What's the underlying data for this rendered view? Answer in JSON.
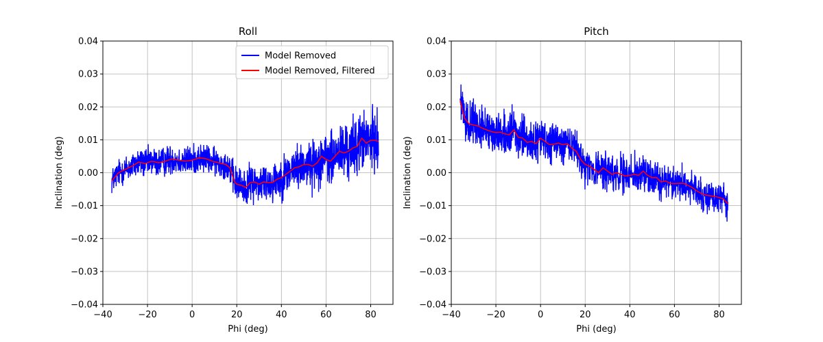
{
  "chart_data": [
    {
      "type": "line",
      "title": "Roll",
      "xlabel": "Phi (deg)",
      "ylabel": "Inclination (deg)",
      "xlim": [
        -40,
        90
      ],
      "ylim": [
        -0.04,
        0.04
      ],
      "xticks": [
        -40,
        -20,
        0,
        20,
        40,
        60,
        80
      ],
      "xtick_labels": [
        "−40",
        "−20",
        "0",
        "20",
        "40",
        "60",
        "80"
      ],
      "yticks": [
        -0.04,
        -0.03,
        -0.02,
        -0.01,
        0.0,
        0.01,
        0.02,
        0.03,
        0.04
      ],
      "ytick_labels": [
        "−0.04",
        "−0.03",
        "−0.02",
        "−0.01",
        "0.00",
        "0.01",
        "0.02",
        "0.03",
        "0.04"
      ],
      "grid": true,
      "legend": {
        "placement": "upper right",
        "entries": [
          "Model Removed",
          "Model Removed, Filtered"
        ]
      },
      "series": [
        {
          "name": "Model Removed",
          "color": "#0000ff",
          "style": "noisy",
          "x_range": [
            -36,
            83.5
          ],
          "noise_amplitude_trend": {
            "x": [
              -36,
              -20,
              0,
              15,
              18,
              30,
              50,
              60,
              70,
              83.5
            ],
            "amp": [
              0.006,
              0.0065,
              0.0065,
              0.006,
              0.0075,
              0.0085,
              0.01,
              0.012,
              0.013,
              0.013
            ]
          }
        },
        {
          "name": "Model Removed, Filtered",
          "color": "#ff0000",
          "x": [
            -36,
            -33,
            -30,
            -27,
            -24,
            -21,
            -18,
            -15,
            -12,
            -9,
            -6,
            -3,
            0,
            3,
            6,
            9,
            12,
            15,
            17,
            18,
            19,
            20,
            22,
            24,
            26,
            28,
            30,
            32,
            34,
            36,
            38,
            40,
            42,
            44,
            46,
            48,
            50,
            52,
            54,
            56,
            58,
            60,
            62,
            64,
            66,
            68,
            70,
            72,
            74,
            76,
            78,
            80,
            82,
            83.5
          ],
          "y": [
            -0.0025,
            0.0,
            0.001,
            0.002,
            0.0032,
            0.0028,
            0.0035,
            0.003,
            0.0035,
            0.0042,
            0.0038,
            0.0035,
            0.0038,
            0.0045,
            0.0043,
            0.0035,
            0.003,
            0.0025,
            0.0015,
            -0.0008,
            -0.0028,
            -0.0035,
            -0.0038,
            -0.0045,
            -0.003,
            -0.0028,
            -0.0035,
            -0.0028,
            -0.003,
            -0.003,
            -0.002,
            -0.0015,
            -0.0005,
            0.0005,
            0.0015,
            0.0018,
            0.0025,
            0.0025,
            0.002,
            0.003,
            0.005,
            0.004,
            0.0035,
            0.005,
            0.0065,
            0.006,
            0.0065,
            0.0075,
            0.008,
            0.0105,
            0.009,
            0.0098,
            0.0098,
            0.0095
          ]
        }
      ]
    },
    {
      "type": "line",
      "title": "Pitch",
      "xlabel": "Phi (deg)",
      "ylabel": "Inclination (deg)",
      "xlim": [
        -40,
        90
      ],
      "ylim": [
        -0.04,
        0.04
      ],
      "xticks": [
        -40,
        -20,
        0,
        20,
        40,
        60,
        80
      ],
      "xtick_labels": [
        "−40",
        "−20",
        "0",
        "20",
        "40",
        "60",
        "80"
      ],
      "yticks": [
        -0.04,
        -0.03,
        -0.02,
        -0.01,
        0.0,
        0.01,
        0.02,
        0.03,
        0.04
      ],
      "ytick_labels": [
        "−0.04",
        "−0.03",
        "−0.02",
        "−0.01",
        "0.00",
        "0.01",
        "0.02",
        "0.03",
        "0.04"
      ],
      "grid": true,
      "series": [
        {
          "color": "#0000ff",
          "style": "noisy",
          "x_range": [
            -36,
            84
          ],
          "noise_amplitude_trend": {
            "x": [
              -36,
              -30,
              0,
              20,
              40,
              60,
              84
            ],
            "amp": [
              0.008,
              0.009,
              0.009,
              0.0085,
              0.008,
              0.0075,
              0.0065
            ]
          }
        },
        {
          "color": "#ff0000",
          "x": [
            -36,
            -35,
            -34,
            -32,
            -30,
            -28,
            -26,
            -24,
            -22,
            -20,
            -18,
            -16,
            -14,
            -12,
            -10,
            -8,
            -6,
            -4,
            -2,
            0,
            2,
            4,
            6,
            8,
            10,
            12,
            14,
            16,
            18,
            20,
            22,
            24,
            26,
            28,
            30,
            32,
            34,
            36,
            38,
            40,
            42,
            44,
            46,
            48,
            50,
            52,
            54,
            56,
            58,
            60,
            62,
            64,
            66,
            68,
            70,
            72,
            74,
            76,
            78,
            80,
            82,
            84
          ],
          "y": [
            0.022,
            0.019,
            0.0165,
            0.0148,
            0.0145,
            0.0142,
            0.0135,
            0.013,
            0.0125,
            0.0122,
            0.0123,
            0.0118,
            0.0115,
            0.013,
            0.0108,
            0.0105,
            0.0092,
            0.0095,
            0.0088,
            0.0105,
            0.0095,
            0.0085,
            0.0087,
            0.009,
            0.0085,
            0.0088,
            0.0075,
            0.0065,
            0.004,
            0.0025,
            0.002,
            0.001,
            0.0,
            0.0015,
            0.0005,
            -0.0005,
            0.0,
            -0.0005,
            -0.001,
            -0.0008,
            -0.0005,
            -0.0008,
            0.0005,
            -0.0008,
            -0.0015,
            -0.0015,
            -0.0028,
            -0.0025,
            -0.0032,
            -0.0033,
            -0.0032,
            -0.0032,
            -0.0038,
            -0.0045,
            -0.0055,
            -0.0063,
            -0.0068,
            -0.007,
            -0.0072,
            -0.0075,
            -0.008,
            -0.0095
          ]
        }
      ]
    }
  ]
}
